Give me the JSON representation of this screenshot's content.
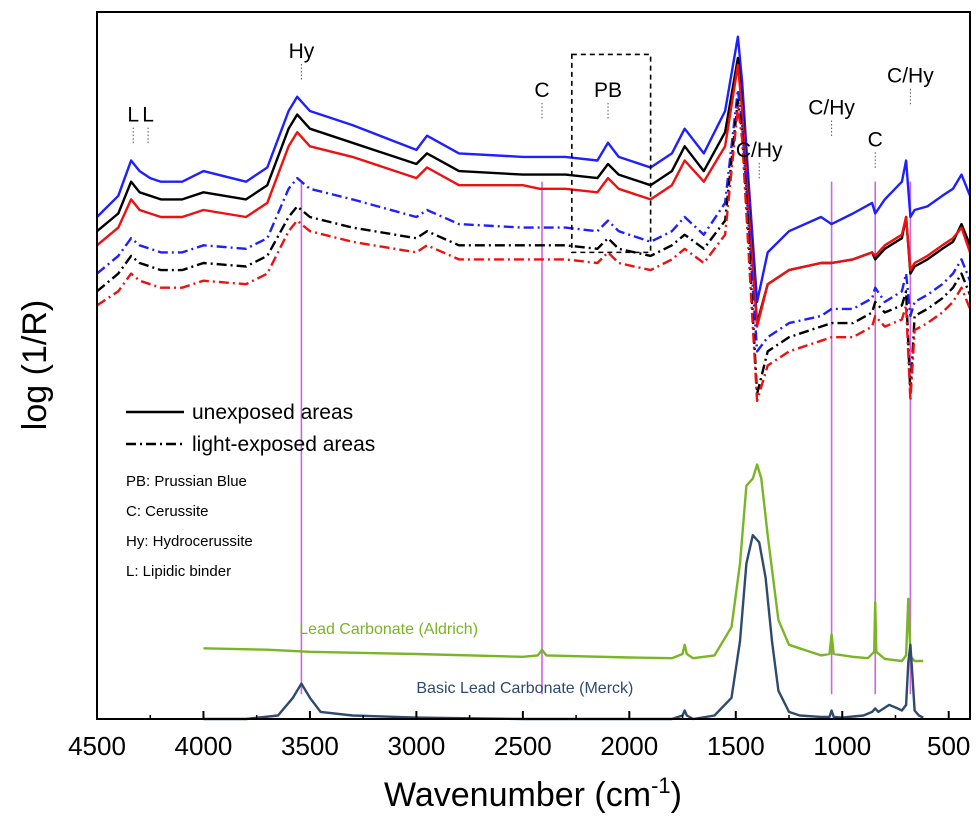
{
  "chart_data": {
    "type": "line",
    "xlabel": "Wavenumber (cm-1)",
    "xlabel_main": "Wavenumber (cm",
    "xlabel_sup": "-1",
    "xlabel_close": ")",
    "ylabel": "log (1/R)",
    "xlim": [
      4500,
      400
    ],
    "ylim": [
      0,
      10
    ],
    "x_reversed": true,
    "grid": false,
    "x_ticks": [
      4500,
      4000,
      3500,
      3000,
      2500,
      2000,
      1500,
      1000,
      500
    ],
    "colors": {
      "blue": "#1f1fff",
      "black": "#000000",
      "red": "#ee1111",
      "green": "#7ab526",
      "navy": "#2f4a6e",
      "marker": "#cc66dd"
    },
    "legend": {
      "placement": "left-middle",
      "entries": [
        {
          "style": "solid",
          "label": "unexposed areas"
        },
        {
          "style": "dash-dot",
          "label": "light-exposed areas"
        }
      ],
      "abbreviations": [
        "PB: Prussian Blue",
        "C: Cerussite",
        "Hy: Hydrocerussite",
        "L: Lipidic binder"
      ]
    },
    "peak_labels": [
      {
        "text": "L",
        "x": 4330,
        "y": 8.45
      },
      {
        "text": "L",
        "x": 4260,
        "y": 8.45
      },
      {
        "text": "Hy",
        "x": 3540,
        "y": 9.35
      },
      {
        "text": "C",
        "x": 2410,
        "y": 8.8
      },
      {
        "text": "PB",
        "x": 2100,
        "y": 8.8
      },
      {
        "text": "C/Hy",
        "x": 1390,
        "y": 7.95
      },
      {
        "text": "C/Hy",
        "x": 1050,
        "y": 8.55
      },
      {
        "text": "C",
        "x": 845,
        "y": 8.1
      },
      {
        "text": "C/Hy",
        "x": 680,
        "y": 9.0
      }
    ],
    "marker_lines": [
      3540,
      2410,
      1050,
      845,
      680
    ],
    "pb_box": {
      "x": [
        2270,
        1900
      ],
      "y": [
        6.6,
        9.4
      ]
    },
    "reference_labels": [
      {
        "text": "Lead Carbonate (Aldrich)",
        "color": "green",
        "x": 3550,
        "y": 1.2
      },
      {
        "text": "Basic Lead Carbonate (Merck)",
        "color": "navy",
        "x": 3000,
        "y": 0.37
      }
    ],
    "series": [
      {
        "name": "unexposed areas",
        "color": "blue",
        "style": "solid",
        "x": [
          4500,
          4400,
          4340,
          4300,
          4250,
          4200,
          4100,
          4000,
          3800,
          3700,
          3600,
          3560,
          3500,
          3300,
          3000,
          2950,
          2800,
          2500,
          2420,
          2300,
          2150,
          2100,
          2050,
          1900,
          1800,
          1740,
          1650,
          1550,
          1490,
          1470,
          1440,
          1400,
          1350,
          1250,
          1100,
          1050,
          950,
          860,
          845,
          800,
          720,
          700,
          680,
          660,
          600,
          530,
          480,
          440,
          400
        ],
        "y": [
          7.1,
          7.4,
          7.9,
          7.75,
          7.65,
          7.6,
          7.6,
          7.75,
          7.6,
          7.8,
          8.6,
          8.8,
          8.6,
          8.4,
          8.05,
          8.25,
          8.0,
          7.95,
          7.95,
          7.95,
          7.9,
          8.15,
          7.95,
          7.8,
          8.0,
          8.35,
          8.0,
          8.6,
          9.65,
          9.0,
          7.6,
          5.9,
          6.6,
          6.9,
          7.1,
          7.0,
          7.15,
          7.3,
          7.15,
          7.35,
          7.6,
          7.9,
          7.1,
          7.2,
          7.25,
          7.4,
          7.5,
          7.7,
          7.4
        ]
      },
      {
        "name": "unexposed areas",
        "color": "black",
        "style": "solid",
        "x": [
          4500,
          4400,
          4340,
          4300,
          4250,
          4200,
          4100,
          4000,
          3800,
          3700,
          3600,
          3560,
          3500,
          3300,
          3000,
          2950,
          2800,
          2500,
          2420,
          2300,
          2150,
          2100,
          2050,
          1900,
          1800,
          1740,
          1650,
          1550,
          1490,
          1470,
          1440,
          1400,
          1350,
          1250,
          1100,
          1050,
          950,
          860,
          845,
          800,
          720,
          700,
          680,
          660,
          600,
          530,
          480,
          440,
          400
        ],
        "y": [
          6.9,
          7.15,
          7.6,
          7.45,
          7.4,
          7.35,
          7.35,
          7.45,
          7.35,
          7.55,
          8.35,
          8.55,
          8.35,
          8.15,
          7.85,
          8.0,
          7.75,
          7.7,
          7.7,
          7.7,
          7.65,
          7.85,
          7.7,
          7.55,
          7.75,
          8.1,
          7.75,
          8.3,
          9.35,
          8.7,
          7.3,
          5.6,
          6.15,
          6.35,
          6.45,
          6.45,
          6.5,
          6.6,
          6.5,
          6.65,
          6.8,
          7.1,
          6.3,
          6.4,
          6.5,
          6.65,
          6.75,
          7.0,
          6.7
        ]
      },
      {
        "name": "unexposed areas",
        "color": "red",
        "style": "solid",
        "x": [
          4500,
          4400,
          4340,
          4300,
          4250,
          4200,
          4100,
          4000,
          3800,
          3700,
          3600,
          3560,
          3500,
          3300,
          3000,
          2950,
          2800,
          2500,
          2420,
          2300,
          2150,
          2100,
          2050,
          1900,
          1800,
          1740,
          1650,
          1550,
          1490,
          1470,
          1440,
          1400,
          1350,
          1250,
          1100,
          1050,
          950,
          860,
          845,
          800,
          720,
          700,
          680,
          660,
          600,
          530,
          480,
          440,
          400
        ],
        "y": [
          6.7,
          6.95,
          7.35,
          7.2,
          7.15,
          7.1,
          7.1,
          7.2,
          7.1,
          7.3,
          8.1,
          8.3,
          8.1,
          7.95,
          7.65,
          7.8,
          7.55,
          7.55,
          7.5,
          7.5,
          7.45,
          7.65,
          7.5,
          7.35,
          7.55,
          7.9,
          7.6,
          8.1,
          9.25,
          8.6,
          7.2,
          5.55,
          6.15,
          6.35,
          6.45,
          6.45,
          6.5,
          6.6,
          6.55,
          6.7,
          6.85,
          7.1,
          6.35,
          6.45,
          6.55,
          6.7,
          6.8,
          6.95,
          6.6
        ]
      },
      {
        "name": "light-exposed areas",
        "color": "blue",
        "style": "dashdot",
        "x": [
          4500,
          4400,
          4340,
          4300,
          4250,
          4200,
          4100,
          4000,
          3800,
          3700,
          3600,
          3560,
          3500,
          3300,
          3000,
          2950,
          2800,
          2500,
          2420,
          2300,
          2150,
          2100,
          2050,
          1900,
          1800,
          1740,
          1650,
          1550,
          1490,
          1470,
          1440,
          1400,
          1350,
          1250,
          1100,
          1050,
          950,
          860,
          845,
          800,
          720,
          700,
          680,
          660,
          600,
          530,
          480,
          440,
          400
        ],
        "y": [
          6.3,
          6.55,
          6.8,
          6.7,
          6.65,
          6.6,
          6.6,
          6.7,
          6.65,
          6.8,
          7.5,
          7.65,
          7.5,
          7.35,
          7.1,
          7.2,
          7.0,
          6.95,
          6.95,
          6.95,
          6.9,
          7.05,
          6.9,
          6.75,
          6.9,
          7.1,
          6.85,
          7.3,
          8.9,
          8.4,
          7.0,
          5.2,
          5.4,
          5.6,
          5.7,
          5.8,
          5.8,
          5.95,
          6.1,
          5.9,
          6.05,
          6.3,
          5.7,
          5.9,
          6.0,
          6.15,
          6.3,
          6.5,
          6.2
        ]
      },
      {
        "name": "light-exposed areas",
        "color": "black",
        "style": "dashdot",
        "x": [
          4500,
          4400,
          4340,
          4300,
          4250,
          4200,
          4100,
          4000,
          3800,
          3700,
          3600,
          3560,
          3500,
          3300,
          3000,
          2950,
          2800,
          2500,
          2420,
          2300,
          2150,
          2100,
          2050,
          1900,
          1800,
          1740,
          1650,
          1550,
          1490,
          1470,
          1440,
          1400,
          1350,
          1250,
          1100,
          1050,
          950,
          860,
          845,
          800,
          720,
          700,
          680,
          660,
          600,
          530,
          480,
          440,
          400
        ],
        "y": [
          6.05,
          6.3,
          6.55,
          6.45,
          6.4,
          6.35,
          6.35,
          6.45,
          6.4,
          6.55,
          7.1,
          7.25,
          7.1,
          6.95,
          6.8,
          6.9,
          6.7,
          6.7,
          6.7,
          6.7,
          6.65,
          6.8,
          6.65,
          6.55,
          6.7,
          6.85,
          6.65,
          7.05,
          8.75,
          8.3,
          6.8,
          4.6,
          5.2,
          5.4,
          5.55,
          5.6,
          5.6,
          5.75,
          5.9,
          5.75,
          5.85,
          6.05,
          4.6,
          5.7,
          5.8,
          5.95,
          6.1,
          6.3,
          6.0
        ]
      },
      {
        "name": "light-exposed areas",
        "color": "red",
        "style": "dashdot",
        "x": [
          4500,
          4400,
          4340,
          4300,
          4250,
          4200,
          4100,
          4000,
          3800,
          3700,
          3600,
          3560,
          3500,
          3300,
          3000,
          2950,
          2800,
          2500,
          2420,
          2300,
          2150,
          2100,
          2050,
          1900,
          1800,
          1740,
          1650,
          1550,
          1490,
          1470,
          1440,
          1400,
          1350,
          1250,
          1100,
          1050,
          950,
          860,
          845,
          800,
          720,
          700,
          680,
          660,
          600,
          530,
          480,
          440,
          400
        ],
        "y": [
          5.85,
          6.05,
          6.3,
          6.2,
          6.15,
          6.1,
          6.1,
          6.2,
          6.15,
          6.3,
          6.9,
          7.05,
          6.9,
          6.75,
          6.6,
          6.7,
          6.5,
          6.5,
          6.5,
          6.5,
          6.45,
          6.6,
          6.45,
          6.35,
          6.5,
          6.65,
          6.45,
          6.85,
          8.65,
          8.2,
          6.6,
          4.5,
          5.0,
          5.2,
          5.35,
          5.4,
          5.4,
          5.55,
          5.7,
          5.55,
          5.65,
          5.85,
          4.5,
          5.5,
          5.6,
          5.75,
          5.9,
          6.1,
          5.8
        ]
      },
      {
        "name": "Lead Carbonate (Aldrich)",
        "color": "green",
        "style": "solid",
        "x": [
          4000,
          3700,
          3500,
          3000,
          2500,
          2430,
          2410,
          2390,
          2000,
          1800,
          1750,
          1740,
          1730,
          1700,
          1600,
          1520,
          1480,
          1450,
          1420,
          1400,
          1380,
          1350,
          1300,
          1250,
          1100,
          1060,
          1050,
          1040,
          950,
          880,
          850,
          845,
          840,
          800,
          720,
          700,
          690,
          680,
          670,
          660,
          620
        ],
        "y": [
          1.0,
          0.98,
          0.95,
          0.92,
          0.88,
          0.9,
          0.98,
          0.9,
          0.87,
          0.86,
          0.92,
          1.05,
          0.92,
          0.86,
          0.9,
          1.3,
          2.2,
          3.3,
          3.4,
          3.6,
          3.4,
          2.6,
          1.4,
          1.05,
          0.9,
          0.92,
          1.2,
          0.92,
          0.88,
          0.86,
          0.95,
          1.65,
          0.95,
          0.85,
          0.82,
          0.9,
          1.7,
          0.9,
          0.85,
          0.82,
          0.82
        ]
      },
      {
        "name": "Basic Lead Carbonate (Merck)",
        "color": "navy",
        "style": "solid",
        "x": [
          4000,
          3800,
          3650,
          3580,
          3540,
          3500,
          3450,
          3300,
          3000,
          2500,
          2000,
          1800,
          1750,
          1740,
          1730,
          1700,
          1600,
          1520,
          1480,
          1450,
          1420,
          1390,
          1360,
          1330,
          1300,
          1250,
          1200,
          1100,
          1060,
          1050,
          1040,
          1000,
          900,
          860,
          845,
          830,
          780,
          740,
          720,
          700,
          690,
          680,
          670,
          660,
          640,
          620
        ],
        "y": [
          0.0,
          0.0,
          0.05,
          0.3,
          0.5,
          0.3,
          0.1,
          0.05,
          0.02,
          0.0,
          0.0,
          0.0,
          0.05,
          0.12,
          0.05,
          0.0,
          0.05,
          0.3,
          1.1,
          2.2,
          2.6,
          2.5,
          2.0,
          1.1,
          0.4,
          0.1,
          0.05,
          0.03,
          0.03,
          0.12,
          0.03,
          0.02,
          0.05,
          0.1,
          0.15,
          0.1,
          0.2,
          0.15,
          0.12,
          0.2,
          0.8,
          1.05,
          0.6,
          0.12,
          0.05,
          0.02
        ]
      }
    ]
  }
}
